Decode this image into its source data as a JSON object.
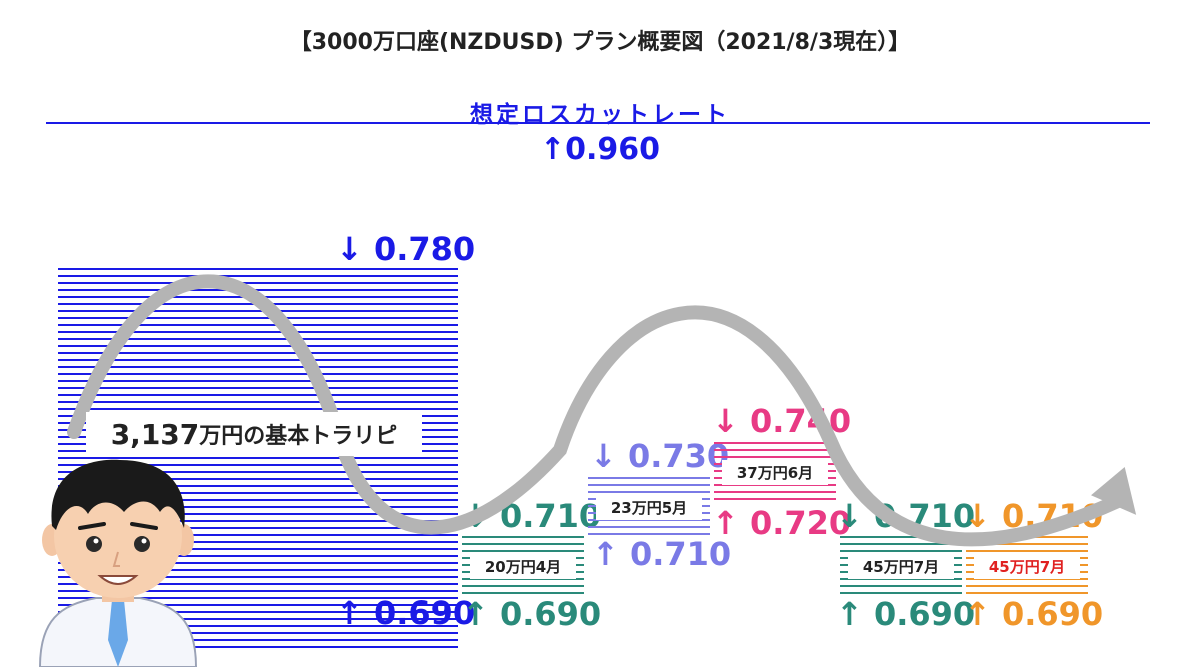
{
  "title": "【3000万口座(NZDUSD) プラン概要図（2021/8/3現在）】",
  "losscut": {
    "label": "想定ロスカットレート",
    "value": "↑0.960"
  },
  "main_range": {
    "top_label": "↓ 0.780",
    "bottom_label": "↑ 0.690",
    "amount": "3,137",
    "amount_suffix": "万円の基本トラリピ",
    "color": "#1a1ae6"
  },
  "boxes": [
    {
      "top_label": "↓ 0.710",
      "bottom_label": "↑ 0.690",
      "text": "20万円4月",
      "color": "#2a8a7a",
      "text_color": "#222222"
    },
    {
      "top_label": "↓ 0.730",
      "bottom_label": "↑ 0.710",
      "text": "23万円5月",
      "color": "#7a7ae6",
      "text_color": "#222222"
    },
    {
      "top_label": "↓ 0.740",
      "bottom_label": "↑ 0.720",
      "text": "37万円6月",
      "color": "#e83a84",
      "text_color": "#222222"
    },
    {
      "top_label": "↓ 0.710",
      "bottom_label": "↑ 0.690",
      "text": "45万円7月",
      "color": "#2a8a7a",
      "text_color": "#222222"
    },
    {
      "top_label": "↓ 0.710",
      "bottom_label": "↑ 0.690",
      "text": "45万円7月",
      "color": "#f0962a",
      "text_color": "#e02020"
    }
  ]
}
